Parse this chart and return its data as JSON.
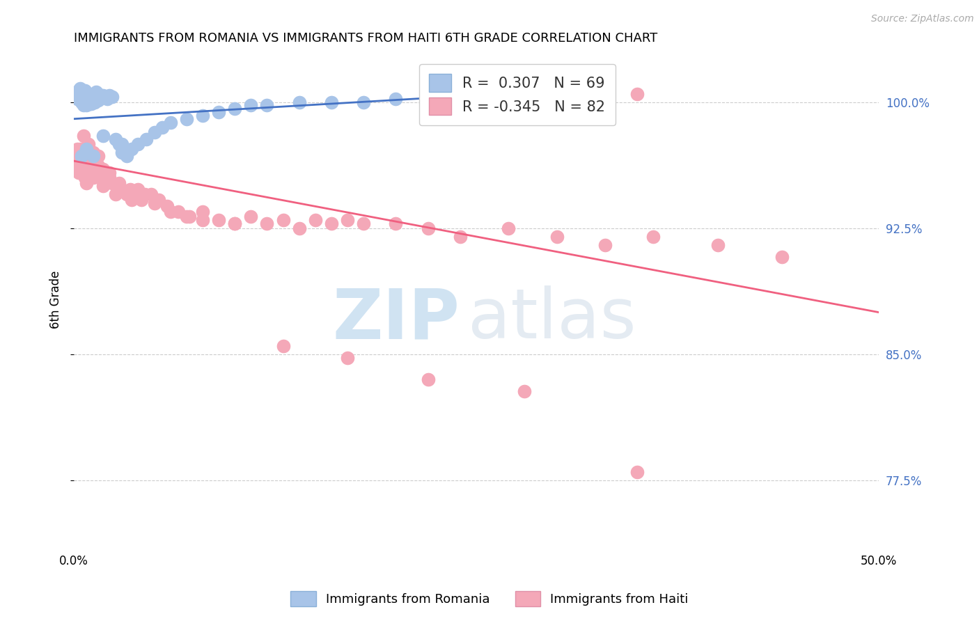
{
  "title": "IMMIGRANTS FROM ROMANIA VS IMMIGRANTS FROM HAITI 6TH GRADE CORRELATION CHART",
  "source": "Source: ZipAtlas.com",
  "ylabel": "6th Grade",
  "yticks": [
    0.775,
    0.85,
    0.925,
    1.0
  ],
  "ytick_labels": [
    "77.5%",
    "85.0%",
    "92.5%",
    "100.0%"
  ],
  "xlim": [
    0.0,
    0.5
  ],
  "ylim": [
    0.735,
    1.03
  ],
  "romania_R": 0.307,
  "romania_N": 69,
  "haiti_R": -0.345,
  "haiti_N": 82,
  "romania_color": "#a8c4e8",
  "haiti_color": "#f4a8b8",
  "romania_line_color": "#4472c4",
  "haiti_line_color": "#f06080",
  "romania_trend_x": [
    0.0,
    0.32
  ],
  "romania_trend_y": [
    0.99,
    1.008
  ],
  "haiti_trend_x": [
    0.0,
    0.5
  ],
  "haiti_trend_y": [
    0.965,
    0.875
  ],
  "romania_scatter_x": [
    0.001,
    0.002,
    0.003,
    0.003,
    0.004,
    0.004,
    0.005,
    0.005,
    0.005,
    0.006,
    0.006,
    0.006,
    0.007,
    0.007,
    0.007,
    0.008,
    0.008,
    0.008,
    0.009,
    0.009,
    0.01,
    0.01,
    0.011,
    0.011,
    0.012,
    0.012,
    0.013,
    0.013,
    0.014,
    0.014,
    0.015,
    0.015,
    0.016,
    0.017,
    0.018,
    0.019,
    0.02,
    0.021,
    0.022,
    0.024,
    0.026,
    0.028,
    0.03,
    0.033,
    0.036,
    0.04,
    0.045,
    0.05,
    0.055,
    0.06,
    0.07,
    0.08,
    0.09,
    0.1,
    0.11,
    0.12,
    0.14,
    0.16,
    0.18,
    0.2,
    0.22,
    0.25,
    0.28,
    0.3,
    0.005,
    0.008,
    0.012,
    0.018,
    0.03
  ],
  "romania_scatter_y": [
    1.005,
    1.002,
    1.005,
    1.007,
    1.003,
    1.008,
    1.0,
    1.004,
    1.007,
    0.998,
    1.002,
    1.006,
    0.999,
    1.003,
    1.007,
    0.998,
    1.001,
    1.005,
    0.999,
    1.004,
    0.999,
    1.004,
    0.999,
    1.004,
    1.0,
    1.005,
    1.0,
    1.005,
    1.001,
    1.006,
    1.001,
    1.005,
    1.002,
    1.003,
    1.004,
    1.003,
    1.003,
    1.002,
    1.004,
    1.003,
    0.978,
    0.975,
    0.97,
    0.968,
    0.972,
    0.975,
    0.978,
    0.982,
    0.985,
    0.988,
    0.99,
    0.992,
    0.994,
    0.996,
    0.998,
    0.998,
    1.0,
    1.0,
    1.0,
    1.002,
    1.002,
    1.004,
    1.004,
    1.006,
    0.968,
    0.972,
    0.968,
    0.98,
    0.975
  ],
  "haiti_scatter_x": [
    0.001,
    0.002,
    0.002,
    0.003,
    0.003,
    0.004,
    0.004,
    0.005,
    0.005,
    0.006,
    0.006,
    0.007,
    0.007,
    0.008,
    0.008,
    0.009,
    0.009,
    0.01,
    0.01,
    0.011,
    0.012,
    0.013,
    0.014,
    0.015,
    0.016,
    0.017,
    0.018,
    0.02,
    0.022,
    0.024,
    0.026,
    0.028,
    0.03,
    0.033,
    0.036,
    0.04,
    0.044,
    0.048,
    0.053,
    0.058,
    0.065,
    0.072,
    0.08,
    0.09,
    0.1,
    0.11,
    0.12,
    0.13,
    0.14,
    0.15,
    0.16,
    0.17,
    0.18,
    0.2,
    0.22,
    0.24,
    0.27,
    0.3,
    0.33,
    0.36,
    0.4,
    0.44,
    0.006,
    0.009,
    0.012,
    0.015,
    0.018,
    0.022,
    0.028,
    0.035,
    0.042,
    0.05,
    0.06,
    0.07,
    0.08,
    0.1,
    0.13,
    0.17,
    0.22,
    0.28,
    0.35,
    0.35
  ],
  "haiti_scatter_y": [
    0.968,
    0.972,
    0.96,
    0.965,
    0.958,
    0.972,
    0.96,
    0.97,
    0.962,
    0.968,
    0.958,
    0.965,
    0.955,
    0.962,
    0.952,
    0.968,
    0.958,
    0.965,
    0.955,
    0.96,
    0.955,
    0.96,
    0.958,
    0.962,
    0.955,
    0.958,
    0.95,
    0.958,
    0.955,
    0.952,
    0.945,
    0.95,
    0.948,
    0.945,
    0.942,
    0.948,
    0.945,
    0.945,
    0.942,
    0.938,
    0.935,
    0.932,
    0.935,
    0.93,
    0.928,
    0.932,
    0.928,
    0.93,
    0.925,
    0.93,
    0.928,
    0.93,
    0.928,
    0.928,
    0.925,
    0.92,
    0.925,
    0.92,
    0.915,
    0.92,
    0.915,
    0.908,
    0.98,
    0.975,
    0.97,
    0.968,
    0.96,
    0.958,
    0.952,
    0.948,
    0.942,
    0.94,
    0.935,
    0.932,
    0.93,
    0.928,
    0.855,
    0.848,
    0.835,
    0.828,
    1.005,
    0.78
  ]
}
